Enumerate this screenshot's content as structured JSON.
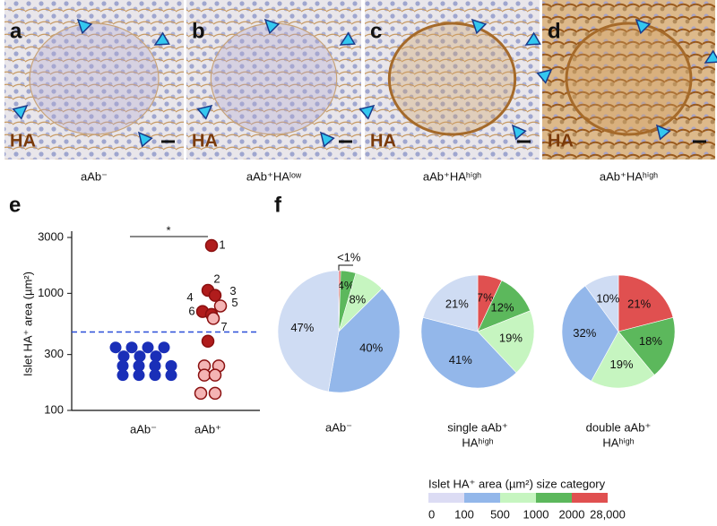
{
  "panels": [
    {
      "letter": "a",
      "stain": "HA",
      "caption": "aAb⁻"
    },
    {
      "letter": "b",
      "stain": "HA",
      "caption": "aAb⁺HAˡᵒʷ"
    },
    {
      "letter": "c",
      "stain": "HA",
      "caption": "aAb⁺HAʰⁱᵍʰ"
    },
    {
      "letter": "d",
      "stain": "HA",
      "caption": "aAb⁺HAʰⁱᵍʰ"
    }
  ],
  "chart_data": [
    {
      "type": "scatter",
      "panel": "e",
      "ylabel": "Islet HA⁺ area (µm²)",
      "log_y": true,
      "ylim": [
        100,
        3000
      ],
      "yticks": [
        100,
        300,
        1000,
        3000
      ],
      "categories": [
        "aAb⁻",
        "aAb⁺"
      ],
      "threshold": 467,
      "significance": "*",
      "groups": [
        {
          "series": [
            {
              "color": "#1a2fb8",
              "values": [
                345,
                345,
                345,
                345,
                290,
                290,
                290,
                240,
                240,
                240,
                240,
                200,
                200,
                200,
                200
              ]
            }
          ]
        },
        {
          "series": [
            {
              "color": "#b01c1c",
              "values": [
                2560,
                1060,
                960,
                700,
                660
              ],
              "point_labels": [
                "1",
                "2",
                "3",
                "4",
                "6"
              ]
            },
            {
              "color": "#f4b4b4",
              "values": [
                780,
                610
              ],
              "point_labels": [
                "5",
                "7"
              ]
            },
            {
              "color": "#b01c1c",
              "values": [
                390
              ]
            },
            {
              "color": "#f4b4b4",
              "values": [
                240,
                240,
                200,
                200,
                140,
                140
              ]
            }
          ]
        }
      ]
    },
    {
      "type": "pie",
      "panel": "f",
      "colors": [
        "#cfdcf3",
        "#93b7ea",
        "#c6f5c0",
        "#5cb85c",
        "#e05050"
      ],
      "pies": [
        {
          "title": [
            "aAb⁻"
          ],
          "values": [
            47,
            40,
            8,
            4,
            0.5
          ],
          "value_labels": [
            "47%",
            "40%",
            "8%",
            "4%",
            "<1%"
          ]
        },
        {
          "title": [
            "single aAb⁺",
            "HAʰⁱᵍʰ"
          ],
          "values": [
            21,
            41,
            19,
            12,
            7
          ],
          "value_labels": [
            "21%",
            "41%",
            "19%",
            "12%",
            "7%"
          ]
        },
        {
          "title": [
            "double aAb⁺",
            "HAʰⁱᵍʰ"
          ],
          "values": [
            10,
            32,
            19,
            18,
            21
          ],
          "value_labels": [
            "10%",
            "32%",
            "19%",
            "18%",
            "21%"
          ]
        }
      ],
      "legend": {
        "title": "Islet HA⁺ area (µm²) size category",
        "bounds": [
          0,
          100,
          500,
          1000,
          2000,
          {
            "value": 28000,
            "label": "28,000"
          }
        ]
      }
    }
  ]
}
